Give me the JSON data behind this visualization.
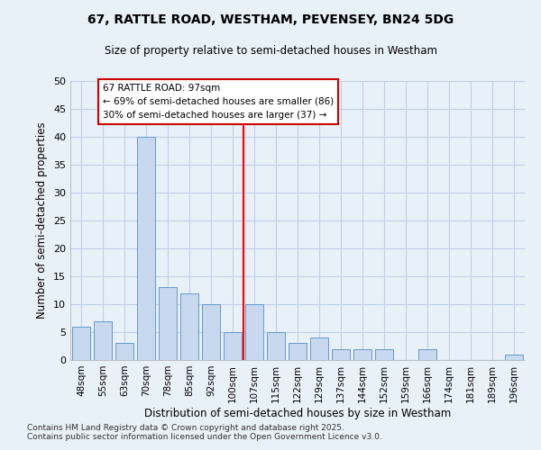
{
  "title1": "67, RATTLE ROAD, WESTHAM, PEVENSEY, BN24 5DG",
  "title2": "Size of property relative to semi-detached houses in Westham",
  "xlabel": "Distribution of semi-detached houses by size in Westham",
  "ylabel": "Number of semi-detached properties",
  "categories": [
    "48sqm",
    "55sqm",
    "63sqm",
    "70sqm",
    "78sqm",
    "85sqm",
    "92sqm",
    "100sqm",
    "107sqm",
    "115sqm",
    "122sqm",
    "129sqm",
    "137sqm",
    "144sqm",
    "152sqm",
    "159sqm",
    "166sqm",
    "174sqm",
    "181sqm",
    "189sqm",
    "196sqm"
  ],
  "values": [
    6,
    7,
    3,
    40,
    13,
    12,
    10,
    5,
    10,
    5,
    3,
    4,
    2,
    2,
    2,
    0,
    2,
    0,
    0,
    0,
    1
  ],
  "bar_color": "#c8d8ee",
  "bar_edge_color": "#6699cc",
  "grid_color": "#c0d0e4",
  "bg_color": "#e8f0f8",
  "ref_line_value": 7.5,
  "annotation_title": "67 RATTLE ROAD: 97sqm",
  "annotation_line1": "← 69% of semi-detached houses are smaller (86)",
  "annotation_line2": "30% of semi-detached houses are larger (37) →",
  "box_edge_color": "#cc0000",
  "footer1": "Contains HM Land Registry data © Crown copyright and database right 2025.",
  "footer2": "Contains public sector information licensed under the Open Government Licence v3.0.",
  "ylim": [
    0,
    50
  ],
  "yticks": [
    0,
    5,
    10,
    15,
    20,
    25,
    30,
    35,
    40,
    45,
    50
  ]
}
